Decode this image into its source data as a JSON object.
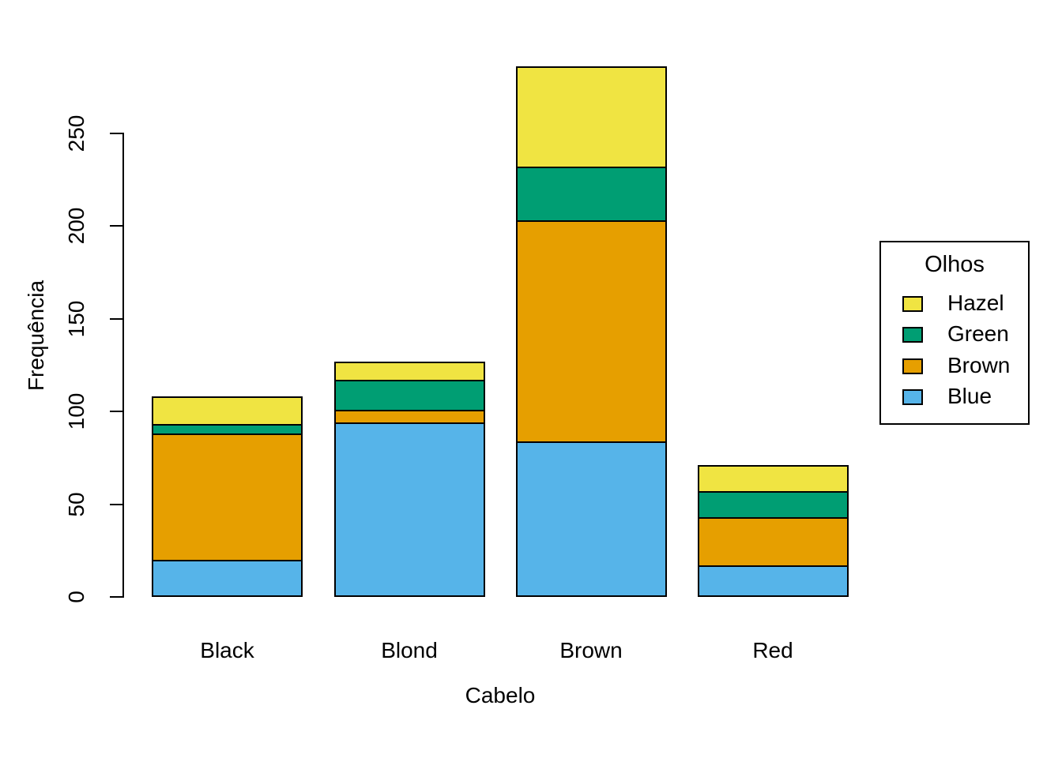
{
  "chart_data": {
    "type": "bar",
    "stacked": true,
    "title": "",
    "xlabel": "Cabelo",
    "ylabel": "Frequência",
    "categories": [
      "Black",
      "Blond",
      "Brown",
      "Red"
    ],
    "series": [
      {
        "name": "Blue",
        "color": "#56B4E9",
        "values": [
          20,
          94,
          84,
          17
        ]
      },
      {
        "name": "Brown",
        "color": "#E69F00",
        "values": [
          68,
          7,
          119,
          26
        ]
      },
      {
        "name": "Green",
        "color": "#009E73",
        "values": [
          5,
          16,
          29,
          14
        ]
      },
      {
        "name": "Hazel",
        "color": "#F0E442",
        "values": [
          15,
          10,
          54,
          14
        ]
      }
    ],
    "yticks": [
      0,
      50,
      100,
      150,
      200,
      250
    ],
    "ylim": [
      0,
      300
    ],
    "grid": false,
    "bar_border_color": "#000000",
    "legend": {
      "title": "Olhos",
      "position": "right",
      "order_top_to_bottom": [
        "Hazel",
        "Green",
        "Brown",
        "Blue"
      ]
    }
  }
}
